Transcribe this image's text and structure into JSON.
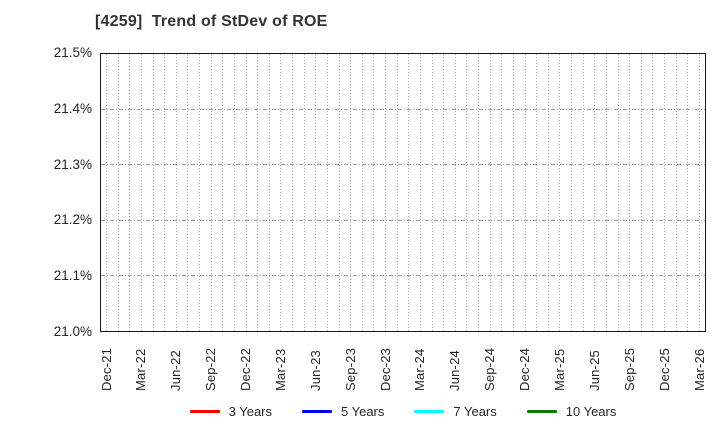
{
  "title": "[4259]  Trend of StDev of ROE",
  "chart_data": {
    "type": "line",
    "title": "[4259]  Trend of StDev of ROE",
    "x_tick_labels": [
      "Dec-21",
      "Mar-22",
      "Jun-22",
      "Sep-22",
      "Dec-22",
      "Mar-23",
      "Jun-23",
      "Sep-23",
      "Dec-23",
      "Mar-24",
      "Jun-24",
      "Sep-24",
      "Dec-24",
      "Mar-25",
      "Jun-25",
      "Sep-25",
      "Dec-25",
      "Mar-26"
    ],
    "y_tick_labels": [
      "21.0%",
      "21.1%",
      "21.2%",
      "21.3%",
      "21.4%",
      "21.5%"
    ],
    "ylim": [
      21.0,
      21.5
    ],
    "y_tick_step": 0.1,
    "y_unit": "%",
    "grid": {
      "vertical": "monthly dotted",
      "horizontal": "dash-dot at each y tick"
    },
    "legend_position": "bottom",
    "series": [
      {
        "name": "3 Years",
        "color": "#ff0000",
        "values": []
      },
      {
        "name": "5 Years",
        "color": "#0000ff",
        "values": []
      },
      {
        "name": "7 Years",
        "color": "#00ffff",
        "values": []
      },
      {
        "name": "10 Years",
        "color": "#008000",
        "values": []
      }
    ],
    "plot_empty": true
  }
}
